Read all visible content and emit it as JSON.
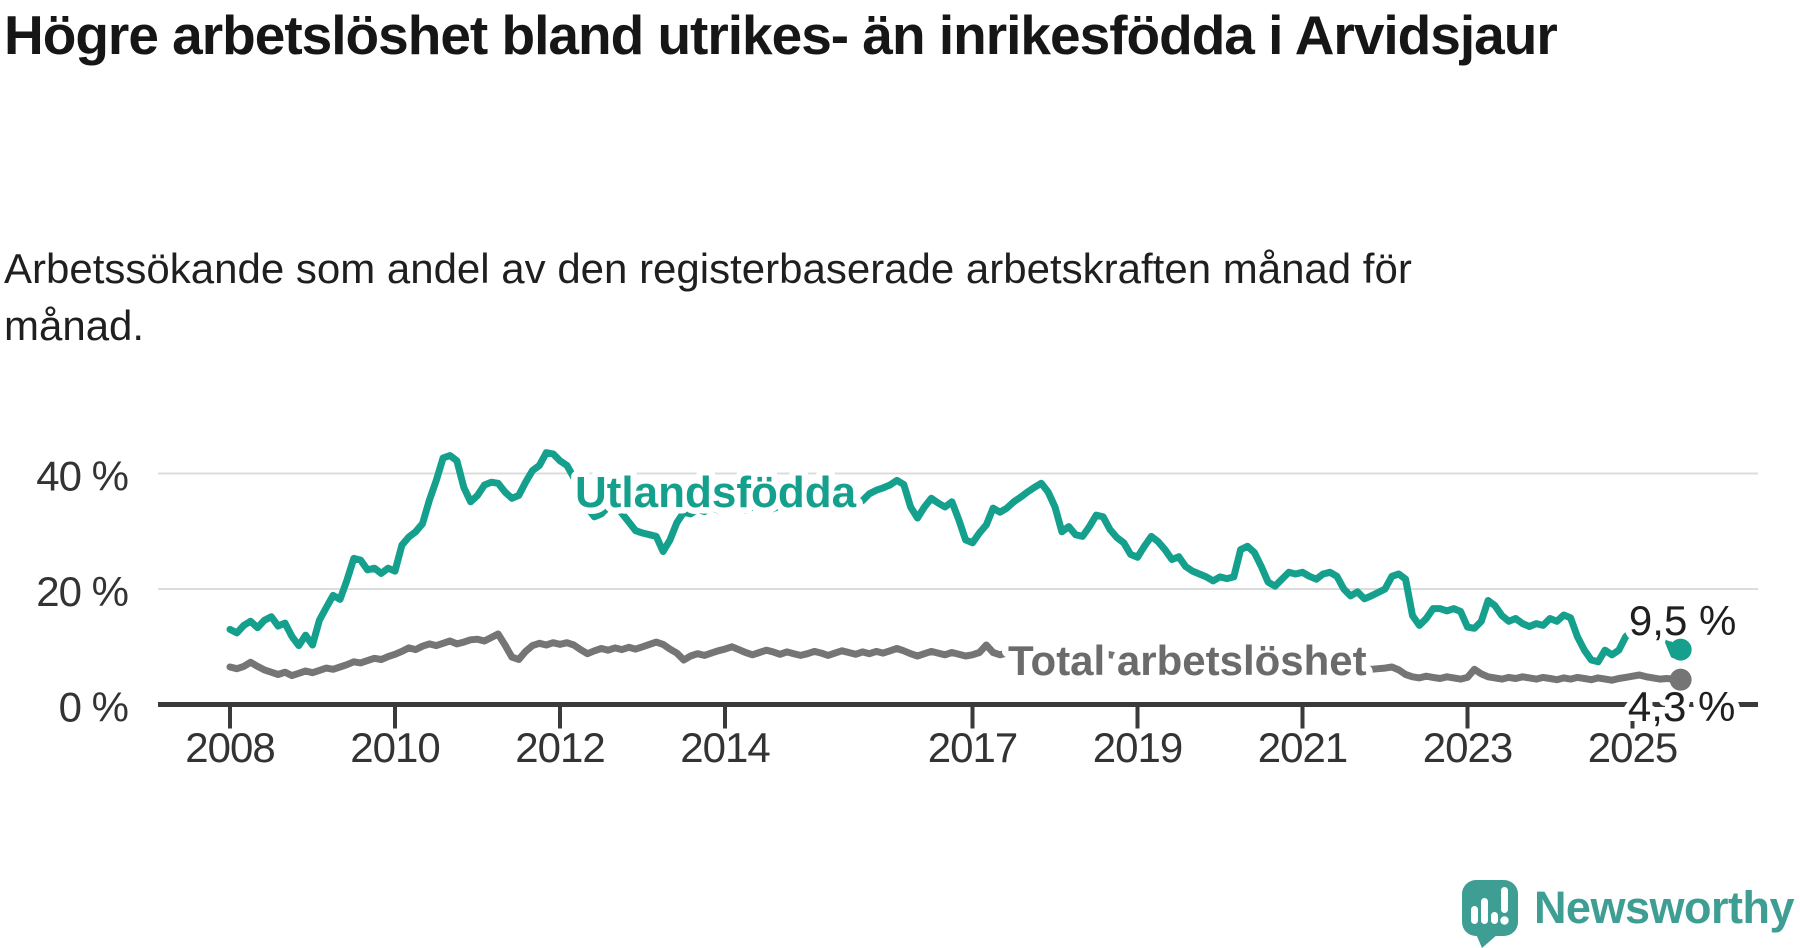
{
  "header": {
    "title": "Högre arbetslöshet bland utrikes- än inrikesfödda i Arvidsjaur",
    "subtitle": "Arbetssökande som andel av den registerbaserade arbetskraften månad för månad."
  },
  "footer": {
    "brand": "Newsworthy"
  },
  "colors": {
    "utlandsfodda_line": "#14a08c",
    "total_line": "#757575",
    "total_label": "#6b6b6b",
    "value_label": "#1f1f1f",
    "axis": "#3a3a3a",
    "tick_label": "#333333",
    "gridline": "#dcdcdc",
    "logo_teal": "#3e9e93"
  },
  "chart_data": {
    "type": "line",
    "title": "Högre arbetslöshet bland utrikes- än inrikesfödda i Arvidsjaur",
    "subtitle": "Arbetssökande som andel av den registerbaserade arbetskraften månad för månad.",
    "xlabel": "",
    "ylabel": "",
    "unit": "%",
    "frequency": "monthly",
    "x_range": [
      "2008-01",
      "2025-08"
    ],
    "ylim": [
      0,
      46
    ],
    "grid": "horizontal",
    "legend_position": "inline-labels",
    "x_ticks": [
      {
        "label": "2008",
        "year": 2008
      },
      {
        "label": "2010",
        "year": 2010
      },
      {
        "label": "2012",
        "year": 2012
      },
      {
        "label": "2014",
        "year": 2014
      },
      {
        "label": "2017",
        "year": 2017
      },
      {
        "label": "2019",
        "year": 2019
      },
      {
        "label": "2021",
        "year": 2021
      },
      {
        "label": "2023",
        "year": 2023
      },
      {
        "label": "2025",
        "year": 2025
      }
    ],
    "y_ticks": [
      {
        "label": "0 %",
        "value": 0
      },
      {
        "label": "20 %",
        "value": 20
      },
      {
        "label": "40 %",
        "value": 40
      }
    ],
    "series": [
      {
        "name": "Total arbetslöshet",
        "color": "#757575",
        "label_color": "#6b6b6b",
        "end_label": "4,3 %",
        "end_value": 4.3,
        "values": [
          6.5,
          6.2,
          6.6,
          7.3,
          6.6,
          6.0,
          5.6,
          5.2,
          5.6,
          5.0,
          5.4,
          5.8,
          5.5,
          5.9,
          6.3,
          6.1,
          6.5,
          6.9,
          7.4,
          7.2,
          7.6,
          8.0,
          7.8,
          8.3,
          8.7,
          9.2,
          9.8,
          9.5,
          10.1,
          10.5,
          10.2,
          10.6,
          11.0,
          10.5,
          10.8,
          11.2,
          11.3,
          11.0,
          11.6,
          12.2,
          10.3,
          8.2,
          7.8,
          9.2,
          10.2,
          10.6,
          10.3,
          10.7,
          10.4,
          10.7,
          10.3,
          9.5,
          8.8,
          9.3,
          9.7,
          9.4,
          9.8,
          9.5,
          9.9,
          9.6,
          10.0,
          10.4,
          10.8,
          10.4,
          9.6,
          8.9,
          7.7,
          8.4,
          8.8,
          8.5,
          8.9,
          9.3,
          9.6,
          10.0,
          9.5,
          9.0,
          8.6,
          9.0,
          9.4,
          9.1,
          8.7,
          9.1,
          8.8,
          8.5,
          8.8,
          9.2,
          8.9,
          8.5,
          8.9,
          9.3,
          9.0,
          8.7,
          9.1,
          8.8,
          9.2,
          8.9,
          9.3,
          9.7,
          9.3,
          8.8,
          8.4,
          8.8,
          9.2,
          8.9,
          8.6,
          9.0,
          8.7,
          8.4,
          8.6,
          9.0,
          10.3,
          9.0,
          8.6,
          8.9,
          9.2,
          8.9,
          8.6,
          8.9,
          9.2,
          8.9,
          8.6,
          8.9,
          9.2,
          8.9,
          8.6,
          8.4,
          8.7,
          8.9,
          8.6,
          8.4,
          8.2,
          8.4,
          8.6,
          8.4,
          8.2,
          8.4,
          8.6,
          8.4,
          8.1,
          7.9,
          8.1,
          8.3,
          8.1,
          7.9,
          8.1,
          8.3,
          8.6,
          8.9,
          9.2,
          8.9,
          8.6,
          8.4,
          8.1,
          7.9,
          7.7,
          7.9,
          7.9,
          7.7,
          7.5,
          7.3,
          7.1,
          6.9,
          6.7,
          6.5,
          6.3,
          6.2,
          6.1,
          6.2,
          6.3,
          6.5,
          6.0,
          5.2,
          4.8,
          4.6,
          4.9,
          4.7,
          4.5,
          4.8,
          4.6,
          4.4,
          4.7,
          6.1,
          5.3,
          4.8,
          4.6,
          4.4,
          4.7,
          4.5,
          4.8,
          4.6,
          4.4,
          4.7,
          4.5,
          4.3,
          4.6,
          4.4,
          4.7,
          4.5,
          4.3,
          4.6,
          4.4,
          4.2,
          4.5,
          4.7,
          4.9,
          5.1,
          4.8,
          4.6,
          4.4,
          4.5,
          4.4,
          4.3
        ]
      },
      {
        "name": "Utlandsfödda",
        "color": "#14a08c",
        "label_color": "#14a08c",
        "end_label": "9,5 %",
        "end_value": 9.5,
        "values": [
          13.0,
          12.4,
          13.7,
          14.4,
          13.3,
          14.6,
          15.2,
          13.6,
          14.1,
          11.8,
          10.2,
          12.0,
          10.3,
          14.6,
          16.8,
          18.9,
          18.2,
          21.5,
          25.3,
          25.0,
          23.3,
          23.6,
          22.7,
          23.6,
          23.1,
          27.6,
          29.0,
          29.9,
          31.3,
          35.4,
          38.8,
          42.7,
          43.1,
          42.2,
          37.6,
          35.1,
          36.2,
          38.0,
          38.5,
          38.3,
          36.8,
          35.7,
          36.2,
          38.5,
          40.5,
          41.4,
          43.6,
          43.4,
          42.2,
          41.4,
          39.3,
          38.5,
          34.0,
          32.5,
          33.0,
          34.2,
          34.6,
          33.1,
          31.6,
          30.1,
          29.7,
          29.4,
          29.1,
          26.5,
          28.5,
          31.5,
          33.3,
          33.0,
          33.8,
          33.4,
          34.1,
          33.7,
          34.3,
          34.9,
          34.1,
          33.6,
          34.2,
          34.7,
          34.3,
          33.9,
          34.4,
          34.9,
          34.4,
          34.0,
          34.7,
          35.1,
          34.5,
          34.0,
          34.6,
          35.0,
          34.3,
          34.6,
          35.3,
          36.5,
          37.1,
          37.5,
          38.0,
          38.8,
          38.1,
          34.2,
          32.3,
          34.2,
          35.7,
          34.9,
          34.2,
          35.1,
          32.0,
          28.5,
          28.0,
          29.7,
          31.1,
          34.0,
          33.3,
          34.0,
          35.1,
          35.9,
          36.8,
          37.6,
          38.3,
          36.8,
          34.2,
          29.9,
          30.8,
          29.4,
          29.1,
          30.8,
          32.8,
          32.5,
          30.3,
          28.9,
          28.0,
          26.0,
          25.5,
          27.4,
          29.1,
          28.2,
          26.8,
          25.1,
          25.6,
          23.9,
          23.1,
          22.6,
          22.1,
          21.4,
          22.1,
          21.8,
          22.1,
          26.8,
          27.4,
          26.3,
          23.9,
          21.2,
          20.5,
          21.7,
          22.9,
          22.6,
          22.9,
          22.2,
          21.7,
          22.6,
          22.9,
          22.2,
          20.0,
          18.8,
          19.5,
          18.3,
          18.8,
          19.4,
          20.0,
          22.2,
          22.6,
          21.7,
          15.4,
          13.7,
          14.9,
          16.6,
          16.6,
          16.2,
          16.6,
          16.1,
          13.4,
          13.2,
          14.4,
          18.0,
          17.1,
          15.4,
          14.4,
          14.9,
          14.0,
          13.5,
          14.0,
          13.7,
          14.9,
          14.4,
          15.5,
          15.0,
          11.7,
          9.4,
          7.7,
          7.4,
          9.4,
          8.6,
          9.4,
          11.7,
          12.9,
          13.7,
          13.4,
          13.4,
          13.2,
          11.5,
          8.6,
          9.5
        ]
      }
    ]
  }
}
